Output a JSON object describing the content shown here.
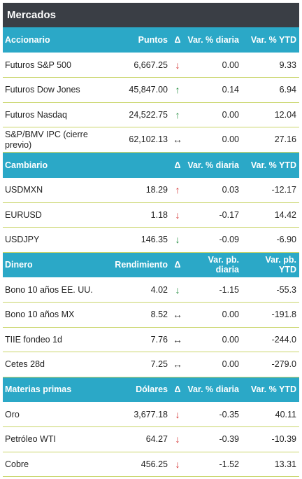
{
  "title": "Mercados",
  "sections": [
    {
      "header": {
        "name": "Accionario",
        "value": "Puntos",
        "delta": "Δ",
        "var": "Var. % diaria",
        "ytd": "Var. % YTD"
      },
      "rows": [
        {
          "name": "Futuros S&P 500",
          "value": "6,667.25",
          "arrow": "↓",
          "arrow_color": "#d32f2f",
          "var": "0.00",
          "ytd": "9.33"
        },
        {
          "name": "Futuros Dow Jones",
          "value": "45,847.00",
          "arrow": "↑",
          "arrow_color": "#1f8a3b",
          "var": "0.14",
          "ytd": "6.94"
        },
        {
          "name": "Futuros Nasdaq",
          "value": "24,522.75",
          "arrow": "↑",
          "arrow_color": "#1f8a3b",
          "var": "0.00",
          "ytd": "12.04"
        },
        {
          "name": "S&P/BMV IPC (cierre previo)",
          "value": "62,102.13",
          "arrow": "↔",
          "arrow_color": "#333333",
          "var": "0.00",
          "ytd": "27.16"
        }
      ]
    },
    {
      "header": {
        "name": "Cambiario",
        "value": "",
        "delta": "Δ",
        "var": "Var. % diaria",
        "ytd": "Var. % YTD"
      },
      "rows": [
        {
          "name": "USDMXN",
          "value": "18.29",
          "arrow": "↑",
          "arrow_color": "#d32f2f",
          "var": "0.03",
          "ytd": "-12.17"
        },
        {
          "name": "EURUSD",
          "value": "1.18",
          "arrow": "↓",
          "arrow_color": "#d32f2f",
          "var": "-0.17",
          "ytd": "14.42"
        },
        {
          "name": "USDJPY",
          "value": "146.35",
          "arrow": "↓",
          "arrow_color": "#1f8a3b",
          "var": "-0.09",
          "ytd": "-6.90"
        }
      ]
    },
    {
      "header": {
        "name": "Dinero",
        "value": "Rendimiento",
        "delta": "Δ",
        "var": "Var. pb. diaria",
        "ytd": "Var. pb. YTD"
      },
      "rows": [
        {
          "name": "Bono 10 años EE. UU.",
          "value": "4.02",
          "arrow": "↓",
          "arrow_color": "#1f8a3b",
          "var": "-1.15",
          "ytd": "-55.3"
        },
        {
          "name": "Bono 10 años MX",
          "value": "8.52",
          "arrow": "↔",
          "arrow_color": "#333333",
          "var": "0.00",
          "ytd": "-191.8"
        },
        {
          "name": "TIIE fondeo 1d",
          "value": "7.76",
          "arrow": "↔",
          "arrow_color": "#333333",
          "var": "0.00",
          "ytd": "-244.0"
        },
        {
          "name": "Cetes 28d",
          "value": "7.25",
          "arrow": "↔",
          "arrow_color": "#333333",
          "var": "0.00",
          "ytd": "-279.0"
        }
      ]
    },
    {
      "header": {
        "name": "Materias primas",
        "value": "Dólares",
        "delta": "Δ",
        "var": "Var. % diaria",
        "ytd": "Var. % YTD"
      },
      "rows": [
        {
          "name": "Oro",
          "value": "3,677.18",
          "arrow": "↓",
          "arrow_color": "#d32f2f",
          "var": "-0.35",
          "ytd": "40.11"
        },
        {
          "name": "Petróleo WTI",
          "value": "64.27",
          "arrow": "↓",
          "arrow_color": "#d32f2f",
          "var": "-0.39",
          "ytd": "-10.39"
        },
        {
          "name": "Cobre",
          "value": "456.25",
          "arrow": "↓",
          "arrow_color": "#d32f2f",
          "var": "-1.52",
          "ytd": "13.31"
        }
      ]
    }
  ]
}
